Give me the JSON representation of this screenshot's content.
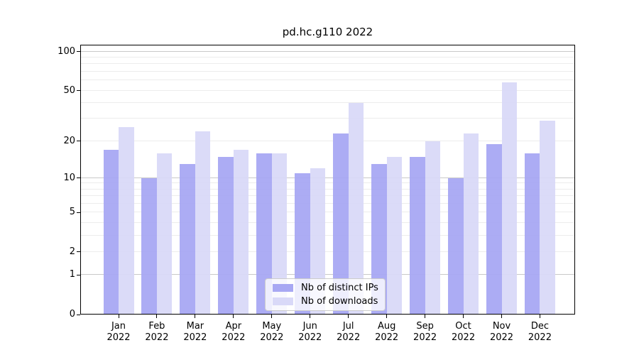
{
  "chart_data": {
    "type": "bar",
    "title": "pd.hc.g110 2022",
    "xlabel": "",
    "ylabel": "",
    "categories": [
      "Jan 2022",
      "Feb 2022",
      "Mar 2022",
      "Apr 2022",
      "May 2022",
      "Jun 2022",
      "Jul 2022",
      "Aug 2022",
      "Sep 2022",
      "Oct 2022",
      "Nov 2022",
      "Dec 2022"
    ],
    "series": [
      {
        "name": "Nb of distinct IPs",
        "color": "#a8a8f3",
        "values": [
          17,
          10,
          13,
          15,
          16,
          11,
          23,
          13,
          15,
          10,
          19,
          16
        ]
      },
      {
        "name": "Nb of downloads",
        "color": "#d9d9f8",
        "values": [
          26,
          16,
          24,
          17,
          16,
          12,
          40,
          15,
          20,
          23,
          58,
          29
        ]
      }
    ],
    "yscale": "log10(1+y)",
    "yticks": [
      0,
      1,
      2,
      5,
      10,
      20,
      50,
      100
    ],
    "ylim": [
      0,
      113
    ],
    "major_gridlines": [
      1,
      10,
      100
    ],
    "minor_gridlines": [
      2,
      3,
      4,
      5,
      6,
      7,
      8,
      9,
      20,
      30,
      40,
      50,
      60,
      70,
      80,
      90
    ],
    "grid": true,
    "legend": {
      "position": "lower center"
    },
    "colors": {
      "background": "#ffffff",
      "axis": "#000000",
      "grid_minor": "#ececec",
      "grid_major": "#c9c9c9",
      "legend_edge": "#cccccc"
    }
  }
}
